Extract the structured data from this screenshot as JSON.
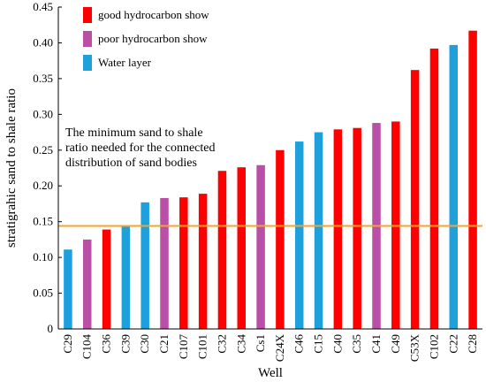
{
  "chart_data": {
    "type": "bar",
    "xlabel": "Well",
    "ylabel": "stratigrahic sand to shale ratio",
    "ylim": [
      0,
      0.45
    ],
    "yticks": [
      "0",
      "0.05",
      "0.10",
      "0.15",
      "0.20",
      "0.25",
      "0.30",
      "0.35",
      "0.40",
      "0.45"
    ],
    "categories": [
      "C29",
      "C104",
      "C36",
      "C39",
      "C30",
      "C21",
      "C107",
      "C101",
      "C32",
      "C34",
      "Cs1",
      "C24X",
      "C46",
      "C15",
      "C40",
      "C35",
      "C41",
      "C49",
      "C53X",
      "C102",
      "C22",
      "C28"
    ],
    "values": [
      0.111,
      0.125,
      0.139,
      0.143,
      0.177,
      0.183,
      0.184,
      0.189,
      0.221,
      0.226,
      0.229,
      0.25,
      0.262,
      0.275,
      0.279,
      0.281,
      0.288,
      0.29,
      0.362,
      0.392,
      0.397,
      0.417
    ],
    "classes": [
      "water",
      "poor",
      "good",
      "water",
      "water",
      "poor",
      "good",
      "good",
      "good",
      "good",
      "poor",
      "good",
      "water",
      "water",
      "good",
      "good",
      "poor",
      "good",
      "good",
      "good",
      "water",
      "good"
    ],
    "legend": {
      "placement": "top-left",
      "entries": [
        {
          "key": "good",
          "label": "good hydrocarbon show",
          "color": "#ff0000"
        },
        {
          "key": "poor",
          "label": "poor hydrocarbon show",
          "color": "#b94fa6"
        },
        {
          "key": "water",
          "label": "Water layer",
          "color": "#1ea0dc"
        }
      ]
    },
    "threshold": {
      "value": 0.144,
      "color": "#f5a32a",
      "annotation": [
        "The minimum sand to shale",
        "ratio needed for the connected",
        "distribution of sand bodies"
      ]
    }
  }
}
